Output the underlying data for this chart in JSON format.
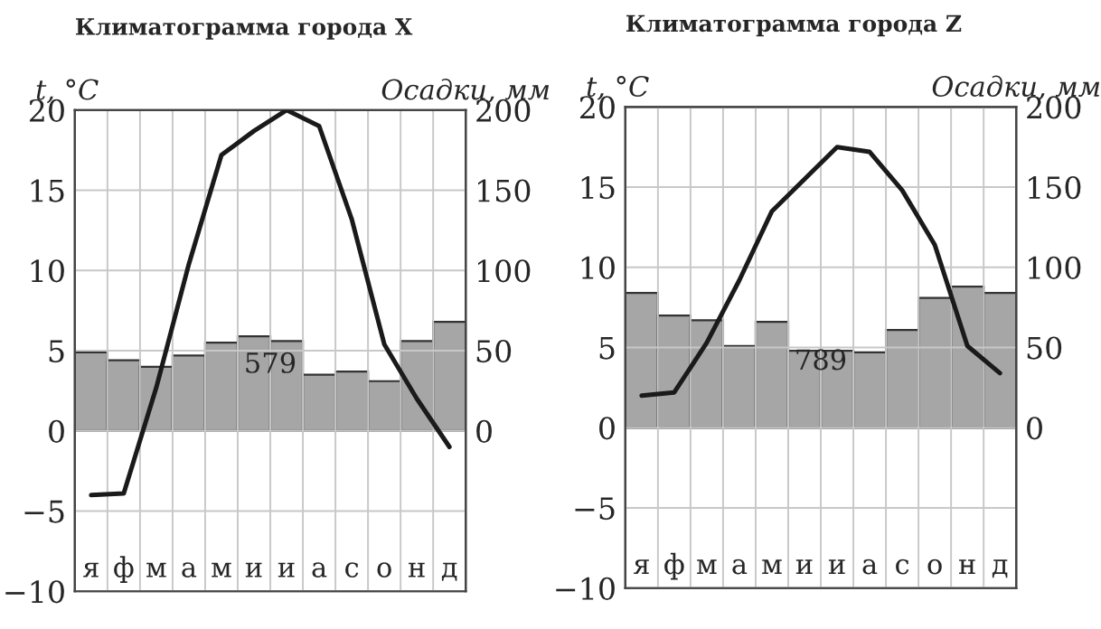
{
  "chart_data": [
    {
      "type": "bar",
      "title": "Климатограмма города X",
      "ylabel": "t, °C",
      "y2label": "Осадки, мм",
      "annotations": [
        "579"
      ],
      "categories": [
        "я",
        "ф",
        "м",
        "а",
        "м",
        "и",
        "и",
        "а",
        "с",
        "о",
        "н",
        "д"
      ],
      "series": [
        {
          "axis": "y2",
          "color": "#a6a6a6",
          "values": [
            49,
            44,
            40,
            47,
            55,
            59,
            56,
            35,
            37,
            31,
            56,
            68
          ]
        },
        {
          "type": "line",
          "color": "#1a1a1a",
          "values": [
            -4,
            -3.9,
            2.7,
            10.4,
            17.2,
            18.7,
            20,
            19,
            13.2,
            5.4,
            2,
            -1
          ]
        }
      ],
      "ylim": [
        -10,
        20
      ],
      "yticks": [
        -10,
        -5,
        0,
        5,
        10,
        15,
        20
      ],
      "y2lim": [
        -100,
        200
      ],
      "y2ticks": [
        0,
        50,
        100,
        150,
        200
      ],
      "grid": true,
      "marker": "none",
      "line_style": "solid"
    },
    {
      "type": "bar",
      "title": "Климатограмма города Z",
      "ylabel": "t, °C",
      "y2label": "Осадки, мм",
      "annotations": [
        "789"
      ],
      "categories": [
        "я",
        "ф",
        "м",
        "а",
        "м",
        "и",
        "и",
        "а",
        "с",
        "о",
        "н",
        "д"
      ],
      "series": [
        {
          "axis": "y2",
          "color": "#a6a6a6",
          "values": [
            84,
            70,
            67,
            51,
            66,
            48,
            48,
            47,
            61,
            81,
            88,
            84
          ]
        },
        {
          "type": "line",
          "color": "#1a1a1a",
          "values": [
            2,
            2.2,
            5.3,
            9.2,
            13.5,
            15.5,
            17.5,
            17.2,
            14.8,
            11.4,
            5.1,
            3.4
          ]
        }
      ],
      "ylim": [
        -10,
        20
      ],
      "yticks": [
        -10,
        -5,
        0,
        5,
        10,
        15,
        20
      ],
      "y2lim": [
        -100,
        200
      ],
      "y2ticks": [
        0,
        50,
        100,
        150,
        200
      ],
      "grid": true,
      "marker": "none",
      "line_style": "solid"
    }
  ]
}
